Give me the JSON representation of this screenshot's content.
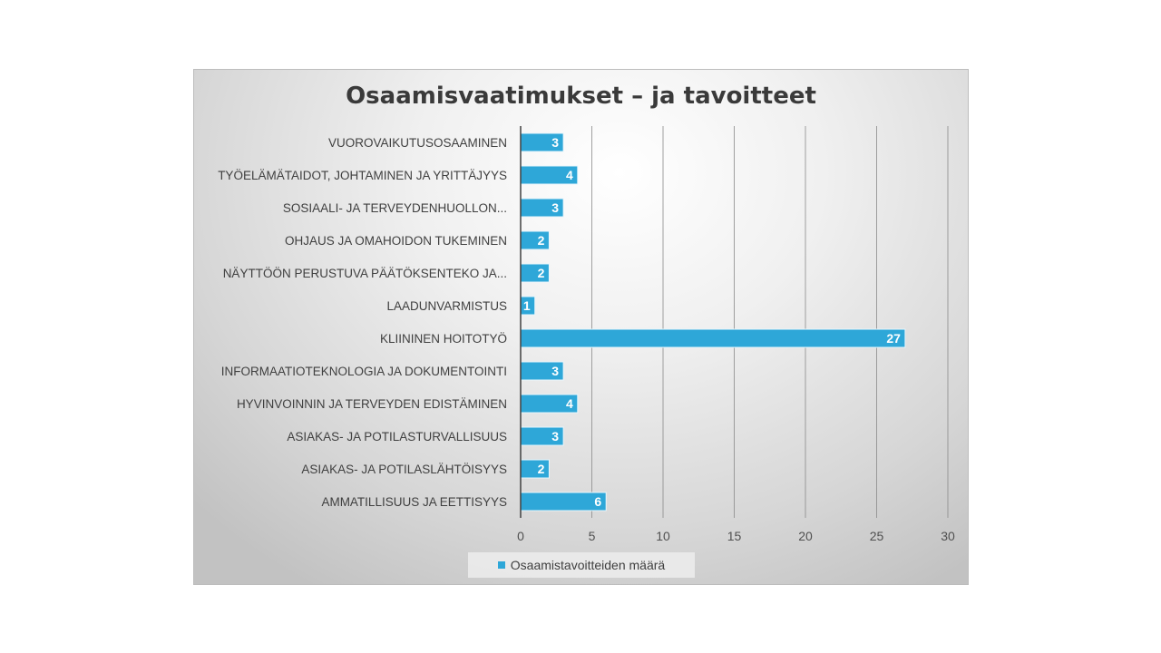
{
  "chart_data": {
    "type": "bar",
    "orientation": "horizontal",
    "title": "Osaamisvaatimukset – ja tavoitteet",
    "categories": [
      "VUOROVAIKUTUSOSAAMINEN",
      "TYÖELÄMÄTAIDOT, JOHTAMINEN JA YRITTÄJYYS",
      "SOSIAALI- JA TERVEYDENHUOLLON...",
      "OHJAUS JA OMAHOIDON TUKEMINEN",
      "NÄYTTÖÖN PERUSTUVA PÄÄTÖKSENTEKO JA...",
      "LAADUNVARMISTUS",
      "KLIININEN HOITOTYÖ",
      "INFORMAATIOTEKNOLOGIA JA DOKUMENTOINTI",
      "HYVINVOINNIN JA TERVEYDEN EDISTÄMINEN",
      "ASIAKAS- JA POTILASTURVALLISUUS",
      "ASIAKAS- JA POTILASLÄHTÖISYYS",
      "AMMATILLISUUS JA EETTISYYS"
    ],
    "series": [
      {
        "name": "Osaamistavoitteiden määrä",
        "values": [
          3,
          4,
          3,
          2,
          2,
          1,
          27,
          3,
          4,
          3,
          2,
          6
        ],
        "color": "#2ea7d8"
      }
    ],
    "xlim": [
      0,
      30
    ],
    "xticks": [
      "0",
      "5",
      "10",
      "15",
      "20",
      "25",
      "30"
    ],
    "grid": true,
    "data_labels": true,
    "legend_position": "bottom"
  }
}
